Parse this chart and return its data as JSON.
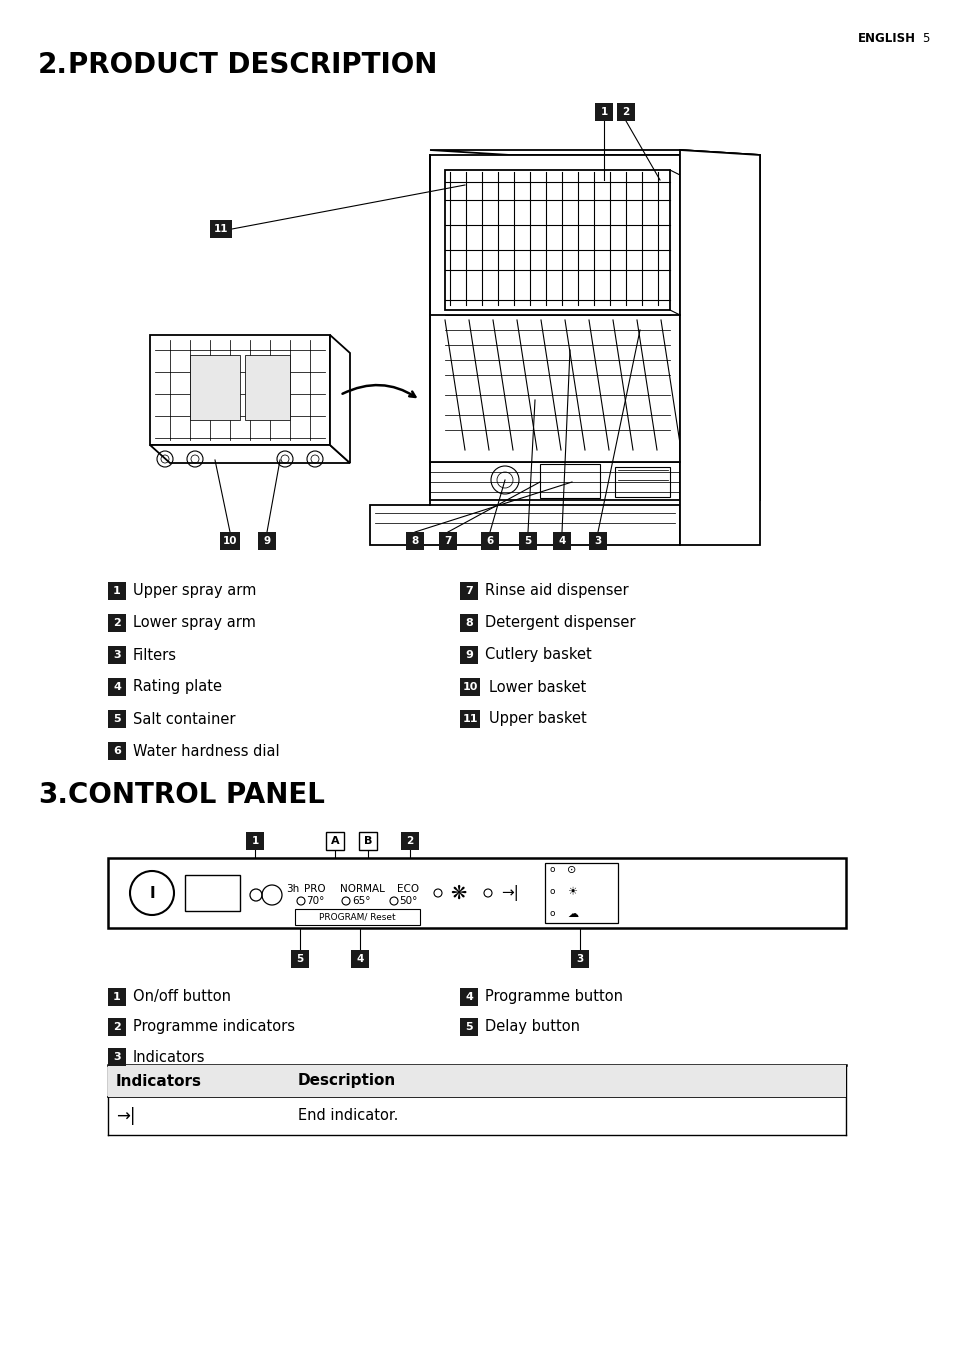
{
  "page_header_right": "ENGLISH    5",
  "section1_number": "2.",
  "section1_title": " PRODUCT DESCRIPTION",
  "section2_number": "3.",
  "section2_title": " CONTROL PANEL",
  "left_items": [
    [
      "1",
      "Upper spray arm"
    ],
    [
      "2",
      "Lower spray arm"
    ],
    [
      "3",
      "Filters"
    ],
    [
      "4",
      "Rating plate"
    ],
    [
      "5",
      "Salt container"
    ],
    [
      "6",
      "Water hardness dial"
    ]
  ],
  "right_items": [
    [
      "7",
      "Rinse aid dispenser"
    ],
    [
      "8",
      "Detergent dispenser"
    ],
    [
      "9",
      "Cutlery basket"
    ],
    [
      "10",
      "Lower basket"
    ],
    [
      "11",
      "Upper basket"
    ]
  ],
  "cp_left_items": [
    [
      "1",
      "On/off button"
    ],
    [
      "2",
      "Programme indicators"
    ],
    [
      "3",
      "Indicators"
    ]
  ],
  "cp_right_items": [
    [
      "4",
      "Programme button"
    ],
    [
      "5",
      "Delay button"
    ]
  ],
  "table_header": [
    "Indicators",
    "Description"
  ],
  "table_rows": [
    [
      "→|",
      "End indicator."
    ]
  ],
  "bg_color": "#ffffff",
  "text_color": "#000000",
  "badge_color": "#1a1a1a",
  "badge_text_color": "#ffffff"
}
